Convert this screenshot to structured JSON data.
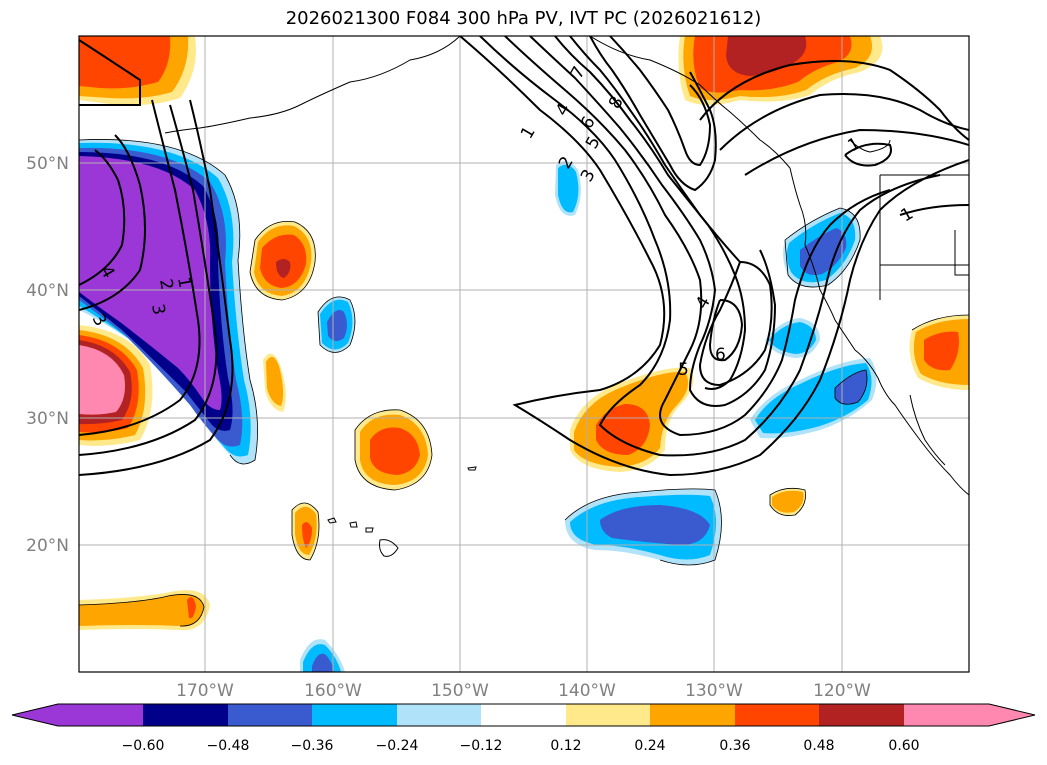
{
  "title": "2026021300 F084 300 hPa PV, IVT PC (2026021612)",
  "lat_labels": [
    "50°N",
    "40°N",
    "30°N",
    "20°N"
  ],
  "lon_labels": [
    "170°W",
    "160°W",
    "150°W",
    "140°W",
    "130°W",
    "120°W"
  ],
  "colorbar": {
    "ticks": [
      "−0.60",
      "−0.48",
      "−0.36",
      "−0.24",
      "−0.12",
      "0.12",
      "0.24",
      "0.36",
      "0.48",
      "0.60"
    ],
    "colors": [
      "#9a37d6",
      "#00008b",
      "#3a5bd0",
      "#00bbff",
      "#b0e2fa",
      "#ffffff",
      "#ffe98a",
      "#ffa500",
      "#ff4500",
      "#b22222",
      "#ff88b0"
    ]
  },
  "contour_labels": [
    "1",
    "2",
    "3",
    "4",
    "5",
    "6",
    "7",
    "8",
    "6",
    "5",
    "4",
    "3",
    "2",
    "1",
    "4",
    "3",
    "1",
    "1"
  ]
}
